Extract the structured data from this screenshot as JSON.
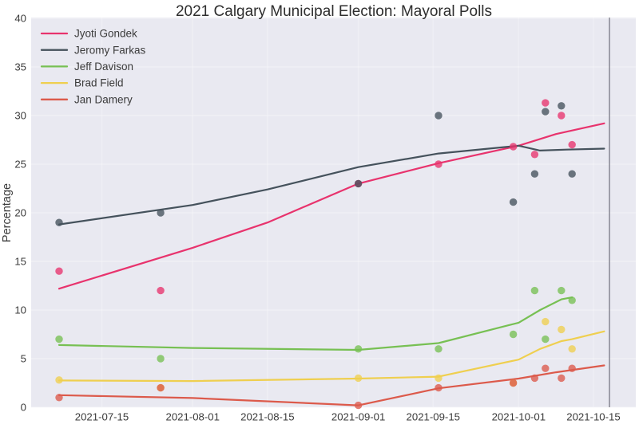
{
  "chart_data": {
    "type": "scatter",
    "title": "2021 Calgary Municipal Election: Mayoral Polls",
    "xlabel": "",
    "ylabel": "Percentage",
    "ylim": [
      0,
      40
    ],
    "yticks": [
      0,
      5,
      10,
      15,
      20,
      25,
      30,
      35,
      40
    ],
    "xticks": [
      "2021-07-15",
      "2021-08-01",
      "2021-08-15",
      "2021-09-01",
      "2021-09-15",
      "2021-10-01",
      "2021-10-15"
    ],
    "grid": true,
    "legend_position": "upper-left",
    "plot_bg_color": "#e9e9f1",
    "figure_bg_color": "#ffffff",
    "gridline_color": "#f6f6fa",
    "election_day_marker": {
      "date": "2021-10-18",
      "color": "#8d8d98"
    },
    "scatter_opacity": 0.78,
    "series": [
      {
        "name": "Jyoti Gondek",
        "color": "#e8336d",
        "points": [
          [
            "2021-07-07",
            14
          ],
          [
            "2021-07-26",
            12
          ],
          [
            "2021-09-01",
            23
          ],
          [
            "2021-09-16",
            25
          ],
          [
            "2021-09-30",
            26.8
          ],
          [
            "2021-10-04",
            26
          ],
          [
            "2021-10-06",
            31.3
          ],
          [
            "2021-10-09",
            30
          ],
          [
            "2021-10-11",
            27
          ]
        ],
        "trend": [
          [
            "2021-07-07",
            12.2
          ],
          [
            "2021-08-01",
            16.4
          ],
          [
            "2021-08-15",
            19.0
          ],
          [
            "2021-09-01",
            23.0
          ],
          [
            "2021-09-16",
            25.1
          ],
          [
            "2021-10-01",
            26.9
          ],
          [
            "2021-10-08",
            28.1
          ],
          [
            "2021-10-17",
            29.2
          ]
        ]
      },
      {
        "name": "Jeromy Farkas",
        "color": "#45525c",
        "points": [
          [
            "2021-07-07",
            19
          ],
          [
            "2021-07-26",
            20
          ],
          [
            "2021-09-01",
            23
          ],
          [
            "2021-09-16",
            30
          ],
          [
            "2021-09-30",
            21.1
          ],
          [
            "2021-10-04",
            24
          ],
          [
            "2021-10-06",
            30.4
          ],
          [
            "2021-10-09",
            31
          ],
          [
            "2021-10-11",
            24
          ]
        ],
        "trend": [
          [
            "2021-07-07",
            18.8
          ],
          [
            "2021-08-01",
            20.8
          ],
          [
            "2021-08-15",
            22.4
          ],
          [
            "2021-09-01",
            24.7
          ],
          [
            "2021-09-16",
            26.1
          ],
          [
            "2021-10-01",
            26.9
          ],
          [
            "2021-10-05",
            26.4
          ],
          [
            "2021-10-10",
            26.5
          ],
          [
            "2021-10-17",
            26.6
          ]
        ]
      },
      {
        "name": "Jeff Davison",
        "color": "#77c053",
        "points": [
          [
            "2021-07-07",
            7
          ],
          [
            "2021-07-26",
            5
          ],
          [
            "2021-09-01",
            6
          ],
          [
            "2021-09-16",
            6
          ],
          [
            "2021-09-30",
            7.5
          ],
          [
            "2021-10-04",
            12
          ],
          [
            "2021-10-06",
            7
          ],
          [
            "2021-10-09",
            12
          ],
          [
            "2021-10-11",
            11
          ]
        ],
        "trend": [
          [
            "2021-07-07",
            6.4
          ],
          [
            "2021-08-01",
            6.1
          ],
          [
            "2021-09-01",
            5.9
          ],
          [
            "2021-09-16",
            6.6
          ],
          [
            "2021-10-01",
            8.7
          ],
          [
            "2021-10-05",
            10.0
          ],
          [
            "2021-10-09",
            11.1
          ],
          [
            "2021-10-11",
            11.3
          ]
        ]
      },
      {
        "name": "Brad Field",
        "color": "#efcf4f",
        "points": [
          [
            "2021-07-07",
            2.8
          ],
          [
            "2021-07-26",
            2
          ],
          [
            "2021-09-01",
            3
          ],
          [
            "2021-09-16",
            3
          ],
          [
            "2021-09-30",
            2.5
          ],
          [
            "2021-10-06",
            8.8
          ],
          [
            "2021-10-09",
            8
          ],
          [
            "2021-10-11",
            6
          ]
        ],
        "trend": [
          [
            "2021-07-07",
            2.75
          ],
          [
            "2021-08-01",
            2.7
          ],
          [
            "2021-09-01",
            2.95
          ],
          [
            "2021-09-16",
            3.15
          ],
          [
            "2021-10-01",
            4.9
          ],
          [
            "2021-10-05",
            6.0
          ],
          [
            "2021-10-09",
            6.8
          ],
          [
            "2021-10-11",
            7.0
          ],
          [
            "2021-10-17",
            7.8
          ]
        ]
      },
      {
        "name": "Jan Damery",
        "color": "#dc5a4b",
        "points": [
          [
            "2021-07-07",
            1
          ],
          [
            "2021-07-26",
            2
          ],
          [
            "2021-09-01",
            0.2
          ],
          [
            "2021-09-16",
            2
          ],
          [
            "2021-09-30",
            2.5
          ],
          [
            "2021-10-04",
            3
          ],
          [
            "2021-10-06",
            4
          ],
          [
            "2021-10-09",
            3
          ],
          [
            "2021-10-11",
            4
          ]
        ],
        "trend": [
          [
            "2021-07-07",
            1.25
          ],
          [
            "2021-08-01",
            0.95
          ],
          [
            "2021-09-01",
            0.2
          ],
          [
            "2021-09-16",
            1.95
          ],
          [
            "2021-10-01",
            2.95
          ],
          [
            "2021-10-08",
            3.6
          ],
          [
            "2021-10-17",
            4.3
          ]
        ]
      }
    ]
  }
}
